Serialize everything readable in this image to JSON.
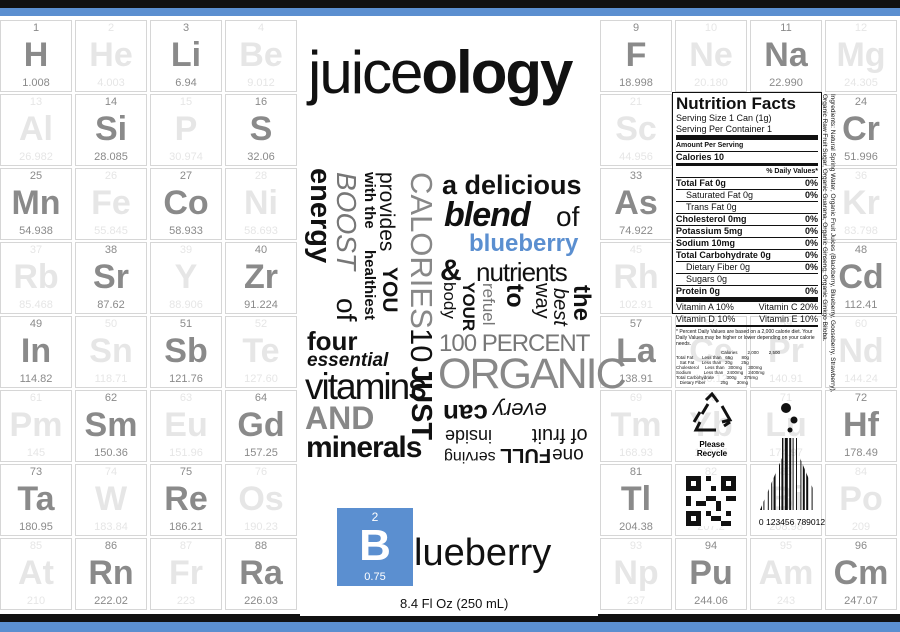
{
  "brand": {
    "light": "juice",
    "bold": "ology"
  },
  "colors": {
    "accent_blue": "#5b8fd0",
    "bar_blue": "#5b8fd0",
    "dark": "#111111",
    "tile_gray": "#8a8a8a"
  },
  "elements": [
    {
      "num": "1",
      "sym": "H",
      "mass": "1.008"
    },
    {
      "num": "2",
      "sym": "He",
      "mass": "4.003"
    },
    {
      "num": "3",
      "sym": "Li",
      "mass": "6.94"
    },
    {
      "num": "4",
      "sym": "Be",
      "mass": "9.012"
    },
    {
      "num": "13",
      "sym": "Al",
      "mass": "26.982"
    },
    {
      "num": "14",
      "sym": "Si",
      "mass": "28.085"
    },
    {
      "num": "15",
      "sym": "P",
      "mass": "30.974"
    },
    {
      "num": "16",
      "sym": "S",
      "mass": "32.06"
    },
    {
      "num": "25",
      "sym": "Mn",
      "mass": "54.938"
    },
    {
      "num": "26",
      "sym": "Fe",
      "mass": "55.845"
    },
    {
      "num": "27",
      "sym": "Co",
      "mass": "58.933"
    },
    {
      "num": "28",
      "sym": "Ni",
      "mass": "58.693"
    },
    {
      "num": "37",
      "sym": "Rb",
      "mass": "85.468"
    },
    {
      "num": "38",
      "sym": "Sr",
      "mass": "87.62"
    },
    {
      "num": "39",
      "sym": "Y",
      "mass": "88.906"
    },
    {
      "num": "40",
      "sym": "Zr",
      "mass": "91.224"
    },
    {
      "num": "49",
      "sym": "In",
      "mass": "114.82"
    },
    {
      "num": "50",
      "sym": "Sn",
      "mass": "118.71"
    },
    {
      "num": "51",
      "sym": "Sb",
      "mass": "121.76"
    },
    {
      "num": "52",
      "sym": "Te",
      "mass": "127.60"
    },
    {
      "num": "61",
      "sym": "Pm",
      "mass": "145"
    },
    {
      "num": "62",
      "sym": "Sm",
      "mass": "150.36"
    },
    {
      "num": "63",
      "sym": "Eu",
      "mass": "151.96"
    },
    {
      "num": "64",
      "sym": "Gd",
      "mass": "157.25"
    },
    {
      "num": "73",
      "sym": "Ta",
      "mass": "180.95"
    },
    {
      "num": "74",
      "sym": "W",
      "mass": "183.84"
    },
    {
      "num": "75",
      "sym": "Re",
      "mass": "186.21"
    },
    {
      "num": "76",
      "sym": "Os",
      "mass": "190.23"
    },
    {
      "num": "85",
      "sym": "At",
      "mass": "210"
    },
    {
      "num": "86",
      "sym": "Rn",
      "mass": "222.02"
    },
    {
      "num": "87",
      "sym": "Fr",
      "mass": "223"
    },
    {
      "num": "88",
      "sym": "Ra",
      "mass": "226.03"
    },
    {
      "num": "9",
      "sym": "F",
      "mass": "18.998"
    },
    {
      "num": "10",
      "sym": "Ne",
      "mass": "20.180"
    },
    {
      "num": "11",
      "sym": "Na",
      "mass": "22.990"
    },
    {
      "num": "12",
      "sym": "Mg",
      "mass": "24.305"
    },
    {
      "num": "21",
      "sym": "Sc",
      "mass": "44.956"
    },
    {
      "num": "22",
      "sym": "Ti",
      "mass": "47.867"
    },
    {
      "num": "23",
      "sym": "V",
      "mass": "50.942"
    },
    {
      "num": "24",
      "sym": "Cr",
      "mass": "51.996"
    },
    {
      "num": "33",
      "sym": "As",
      "mass": "74.922"
    },
    {
      "num": "34",
      "sym": "Se",
      "mass": "78.971"
    },
    {
      "num": "35",
      "sym": "Br",
      "mass": "79.904"
    },
    {
      "num": "36",
      "sym": "Kr",
      "mass": "83.798"
    },
    {
      "num": "45",
      "sym": "Rh",
      "mass": "102.91"
    },
    {
      "num": "46",
      "sym": "Pd",
      "mass": "106.42"
    },
    {
      "num": "47",
      "sym": "Ag",
      "mass": "107.87"
    },
    {
      "num": "48",
      "sym": "Cd",
      "mass": "112.41"
    },
    {
      "num": "57",
      "sym": "La",
      "mass": "138.91"
    },
    {
      "num": "58",
      "sym": "Ce",
      "mass": "140.12"
    },
    {
      "num": "59",
      "sym": "Pr",
      "mass": "140.91"
    },
    {
      "num": "60",
      "sym": "Nd",
      "mass": "144.24"
    },
    {
      "num": "69",
      "sym": "Tm",
      "mass": "168.93"
    },
    {
      "num": "70",
      "sym": "Yb",
      "mass": "173.05"
    },
    {
      "num": "71",
      "sym": "Lu",
      "mass": "174.97"
    },
    {
      "num": "72",
      "sym": "Hf",
      "mass": "178.49"
    },
    {
      "num": "81",
      "sym": "Tl",
      "mass": "204.38"
    },
    {
      "num": "82",
      "sym": "Pb",
      "mass": "207.2"
    },
    {
      "num": "83",
      "sym": "Bi",
      "mass": "208.98"
    },
    {
      "num": "84",
      "sym": "Po",
      "mass": "209"
    },
    {
      "num": "93",
      "sym": "Np",
      "mass": "237"
    },
    {
      "num": "94",
      "sym": "Pu",
      "mass": "244.06"
    },
    {
      "num": "95",
      "sym": "Am",
      "mass": "243"
    },
    {
      "num": "96",
      "sym": "Cm",
      "mass": "247.07"
    }
  ],
  "slogan": {
    "a_delicious": "a delicious",
    "blend": "blend",
    "of": "of",
    "blueberry": "blueberry",
    "amp": "&",
    "nutrients": "nutrients",
    "to": "to",
    "refuel": "refuel",
    "way": "way",
    "your": "YOUR",
    "body": "body",
    "the": "the",
    "best": "best",
    "hundred": "100 PERCENT",
    "organic": "ORGANIC",
    "every": "every",
    "can": "can",
    "of_fruit": "of fruit",
    "inside": "inside",
    "one": "one",
    "full": "FULL",
    "serving": "serving",
    "just": "JUST",
    "ten": "10",
    "calories": "CALORIES",
    "provides": "provides",
    "you": "YOU",
    "with_the": "with the",
    "healthiest": "healthiest",
    "boost": "BOOST",
    "of2": "of",
    "energy": "energy",
    "four": "four",
    "essential": "essential",
    "vitamins": "vitamins",
    "and": "AND",
    "minerals": "minerals"
  },
  "element_box": {
    "number": "2",
    "symbol": "B",
    "mass": "0.75",
    "rest": "lueberry"
  },
  "volume": "8.4 Fl Oz (250 mL)",
  "nutrition": {
    "title": "Nutrition Facts",
    "serving_size": "Serving Size 1 Can (1g)",
    "servings": "Serving Per Container 1",
    "amount": "Amount Per Serving",
    "calories": "Calories 10",
    "dv_header": "% Daily Values*",
    "rows": [
      {
        "label": "Total Fat 0g",
        "dv": "0%"
      },
      {
        "label": "Saturated Fat 0g",
        "dv": "0%"
      },
      {
        "label": "Trans Fat 0g",
        "dv": ""
      },
      {
        "label": "Cholesterol 0mg",
        "dv": "0%"
      },
      {
        "label": "Potassium 5mg",
        "dv": "0%"
      },
      {
        "label": "Sodium 10mg",
        "dv": "0%"
      },
      {
        "label": "Total Carbohydrate 0g",
        "dv": "0%"
      },
      {
        "label": "Dietary Fiber 0g",
        "dv": "0%"
      },
      {
        "label": "Sugars 0g",
        "dv": ""
      },
      {
        "label": "Protein 0g",
        "dv": "0%"
      }
    ],
    "vit_a": "Vitamin A 10%",
    "vit_c": "Vitamin C 20%",
    "vit_d": "Vitamin D 10%",
    "vit_e": "Vitamin E 10%",
    "footnote": "* Percent Daily Values are based on a 2,000 calorie diet. Your Daily Values may be higher or lower depending on your calorie needs.",
    "table_head": "Calories        2,000        2,500",
    "table_rows": [
      "Total Fat       Less than   65g       80g",
      "   Sat Fat      Less than   20g       25g",
      "Cholesterol     Less than   300mg     300mg",
      "Sodium          Less than   2400mg    2400mg",
      "Total Carbohydrate          300g      375mg",
      "   Dietary Fiber            25g       30mg"
    ]
  },
  "ingredients": "Ingredients: Natural Spring Water, Organic Fruit Juices (Blackberry, Blueberry, Gooseberry, Strawberry), Organic Raw Fruit Sugar, Organic Guarana, Organic Ginseng, Organic Ginkgo Biloba.",
  "recycle": "Please Recycle",
  "barcode": "0 123456 789012"
}
